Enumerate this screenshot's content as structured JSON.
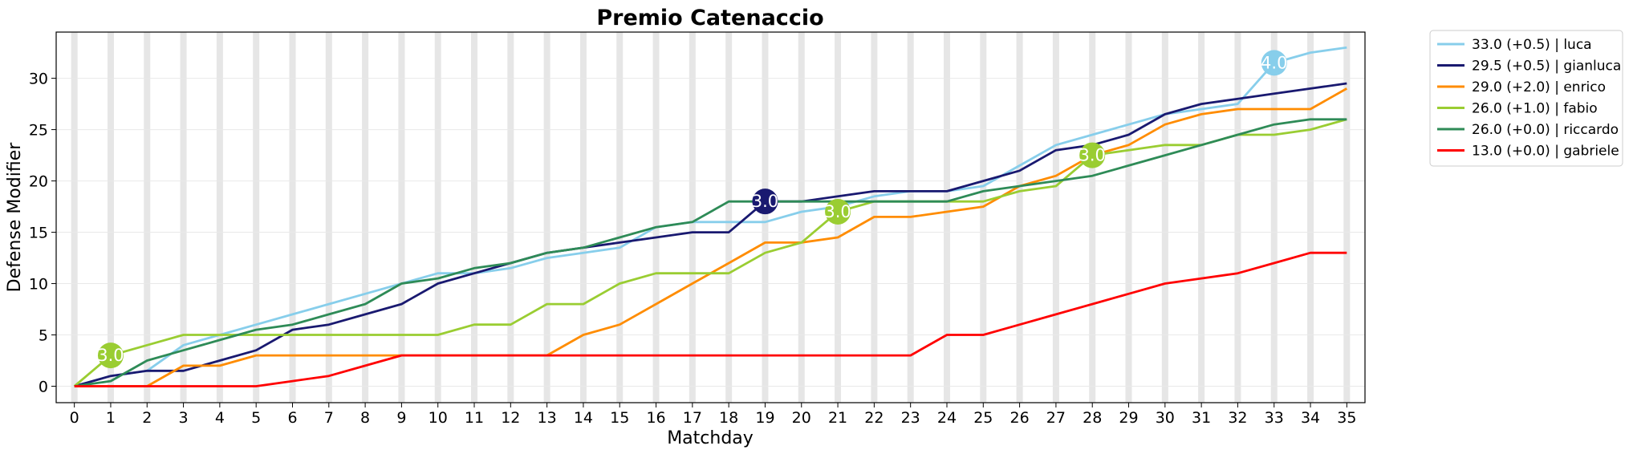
{
  "chart_data": {
    "type": "line",
    "title": "Premio Catenaccio",
    "xlabel": "Matchday",
    "ylabel": "Defense Modifier",
    "x": [
      0,
      1,
      2,
      3,
      4,
      5,
      6,
      7,
      8,
      9,
      10,
      11,
      12,
      13,
      14,
      15,
      16,
      17,
      18,
      19,
      20,
      21,
      22,
      23,
      24,
      25,
      26,
      27,
      28,
      29,
      30,
      31,
      32,
      33,
      34,
      35
    ],
    "xlim": [
      -0.5,
      35.5
    ],
    "ylim": [
      -1.6,
      34.5
    ],
    "yticks": [
      0,
      5,
      10,
      15,
      20,
      25,
      30
    ],
    "grid": true,
    "legend_position": "outside-top-right",
    "series": [
      {
        "name": "33.0 (+0.5) | luca",
        "color": "#87CEEB",
        "values": [
          0,
          1,
          1.5,
          4,
          5,
          6,
          7,
          8,
          9,
          10,
          11,
          11,
          11.5,
          12.5,
          13,
          13.5,
          15.5,
          16,
          16,
          16,
          17,
          17.5,
          18.5,
          19,
          19,
          19.5,
          21.5,
          23.5,
          24.5,
          25.5,
          26.5,
          27,
          27.5,
          31.5,
          32.5,
          33
        ]
      },
      {
        "name": "29.5 (+0.5) | gianluca",
        "color": "#191970",
        "values": [
          0,
          1,
          1.5,
          1.5,
          2.5,
          3.5,
          5.5,
          6,
          7,
          8,
          10,
          11,
          12,
          13,
          13.5,
          14,
          14.5,
          15,
          15,
          18,
          18,
          18.5,
          19,
          19,
          19,
          20,
          21,
          23,
          23.5,
          24.5,
          26.5,
          27.5,
          28,
          28.5,
          29,
          29.5
        ]
      },
      {
        "name": "29.0 (+2.0) | enrico",
        "color": "#FF8C00",
        "values": [
          0,
          0,
          0,
          2,
          2,
          3,
          3,
          3,
          3,
          3,
          3,
          3,
          3,
          3,
          5,
          6,
          8,
          10,
          12,
          14,
          14,
          14.5,
          16.5,
          16.5,
          17,
          17.5,
          19.5,
          20.5,
          22.5,
          23.5,
          25.5,
          26.5,
          27,
          27,
          27,
          29
        ]
      },
      {
        "name": "26.0 (+1.0) | fabio",
        "color": "#9ACD32",
        "values": [
          0,
          3,
          4,
          5,
          5,
          5,
          5,
          5,
          5,
          5,
          5,
          6,
          6,
          8,
          8,
          10,
          11,
          11,
          11,
          13,
          14,
          17,
          18,
          18,
          18,
          18,
          19,
          19.5,
          22.5,
          23,
          23.5,
          23.5,
          24.5,
          24.5,
          25,
          26
        ]
      },
      {
        "name": "26.0 (+0.0) | riccardo",
        "color": "#2E8B57",
        "values": [
          0,
          0.5,
          2.5,
          3.5,
          4.5,
          5.5,
          6,
          7,
          8,
          10,
          10.5,
          11.5,
          12,
          13,
          13.5,
          14.5,
          15.5,
          16,
          18,
          18,
          18,
          18,
          18,
          18,
          18,
          19,
          19.5,
          20,
          20.5,
          21.5,
          22.5,
          23.5,
          24.5,
          25.5,
          26,
          26
        ]
      },
      {
        "name": "13.0 (+0.0) | gabriele",
        "color": "#FF0000",
        "values": [
          0,
          0,
          0,
          0,
          0,
          0,
          0.5,
          1,
          2,
          3,
          3,
          3,
          3,
          3,
          3,
          3,
          3,
          3,
          3,
          3,
          3,
          3,
          3,
          3,
          5,
          5,
          6,
          7,
          8,
          9,
          10,
          10.5,
          11,
          12,
          13,
          13
        ]
      }
    ],
    "annotations": [
      {
        "series": "26.0 (+1.0) | fabio",
        "x": 1,
        "y": 3,
        "text": "3.0",
        "color": "#9ACD32"
      },
      {
        "series": "29.5 (+0.5) | gianluca",
        "x": 19,
        "y": 18,
        "text": "3.0",
        "color": "#191970"
      },
      {
        "series": "26.0 (+1.0) | fabio",
        "x": 21,
        "y": 17,
        "text": "3.0",
        "color": "#9ACD32"
      },
      {
        "series": "26.0 (+1.0) | fabio",
        "x": 28,
        "y": 22.5,
        "text": "3.0",
        "color": "#9ACD32"
      },
      {
        "series": "33.0 (+0.5) | luca",
        "x": 33,
        "y": 31.5,
        "text": "4.0",
        "color": "#87CEEB"
      }
    ]
  }
}
